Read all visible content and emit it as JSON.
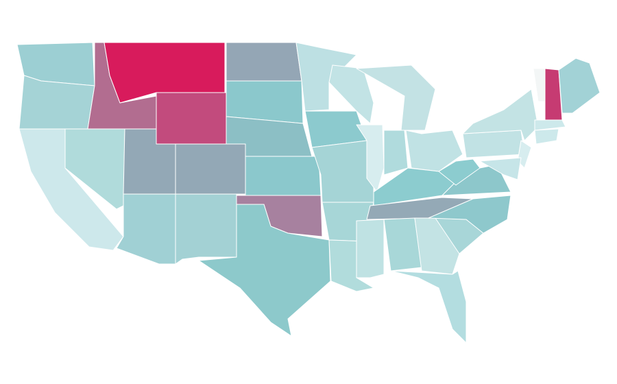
{
  "map": {
    "type": "choropleth",
    "regions": [
      {
        "color": "#9ccfd3"
      },
      {
        "color": "#a5d3d6"
      },
      {
        "color": "#cde8eb"
      },
      {
        "color": "#b0dbdb"
      },
      {
        "color": "#b26d90"
      },
      {
        "color": "#d81b5c"
      },
      {
        "color": "#c24b7d"
      },
      {
        "color": "#93a8b6"
      },
      {
        "color": "#93a8b6"
      },
      {
        "color": "#a0d0d4"
      },
      {
        "color": "#a3d1d4"
      },
      {
        "color": "#94a6b5"
      },
      {
        "color": "#8bc8cc"
      },
      {
        "color": "#8cbfc5"
      },
      {
        "color": "#8bc8cc"
      },
      {
        "color": "#a7819f"
      },
      {
        "color": "#8dc9cb"
      },
      {
        "color": "#bde0e3"
      },
      {
        "color": "#8ccace"
      },
      {
        "color": "#a5d4d6"
      },
      {
        "color": "#a7d6d7"
      },
      {
        "color": "#b1dcdc"
      },
      {
        "color": "#c2e3e5"
      },
      {
        "color": "#d7edef"
      },
      {
        "color": "#c3e2e4"
      },
      {
        "color": "#b0dbdd"
      },
      {
        "color": "#c0e2e4"
      },
      {
        "color": "#8ccccf"
      },
      {
        "color": "#94a9b6"
      },
      {
        "color": "#bfe2e3"
      },
      {
        "color": "#a8d7d8"
      },
      {
        "color": "#c3e3e4"
      },
      {
        "color": "#b3dde0"
      },
      {
        "color": "#a8d6d8"
      },
      {
        "color": "#8ec8cc"
      },
      {
        "color": "#8dc7cb"
      },
      {
        "color": "#8ccccf"
      },
      {
        "color": "#c1e2e4"
      },
      {
        "color": "#c3e3e4"
      },
      {
        "color": "#d7edef"
      },
      {
        "color": "#c6e5e8"
      },
      {
        "color": "#f3f6f6"
      },
      {
        "color": "#c63b72"
      },
      {
        "color": "#a2d2d6"
      },
      {
        "color": "#cde9eb"
      },
      {
        "color": "#cde9eb"
      }
    ]
  }
}
